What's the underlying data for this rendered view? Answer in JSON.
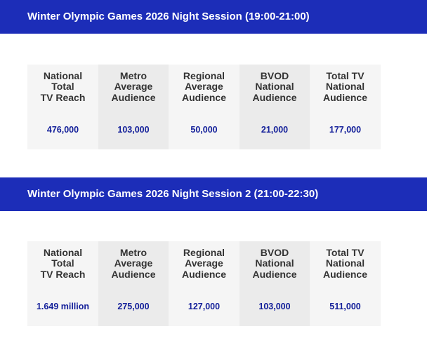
{
  "sessions": [
    {
      "title": "Winter Olympic Games 2026 Night Session (19:00-21:00)",
      "headers": [
        "National\nTotal\nTV Reach",
        "Metro\nAverage\nAudience",
        "Regional\nAverage\nAudience",
        "BVOD\nNational\nAudience",
        "Total TV\nNational\nAudience"
      ],
      "values": [
        "476,000",
        "103,000",
        "50,000",
        "21,000",
        "177,000"
      ]
    },
    {
      "title": "Winter Olympic Games 2026 Night Session 2 (21:00-22:30)",
      "headers": [
        "National\nTotal\nTV Reach",
        "Metro\nAverage\nAudience",
        "Regional\nAverage\nAudience",
        "BVOD\nNational\nAudience",
        "Total TV\nNational\nAudience"
      ],
      "values": [
        "1.649 million",
        "275,000",
        "127,000",
        "103,000",
        "511,000"
      ]
    }
  ],
  "colors": {
    "banner": "#1c2db8",
    "value_text": "#14209a",
    "cell_light": "#f5f5f5",
    "cell_dark": "#ebebeb"
  }
}
